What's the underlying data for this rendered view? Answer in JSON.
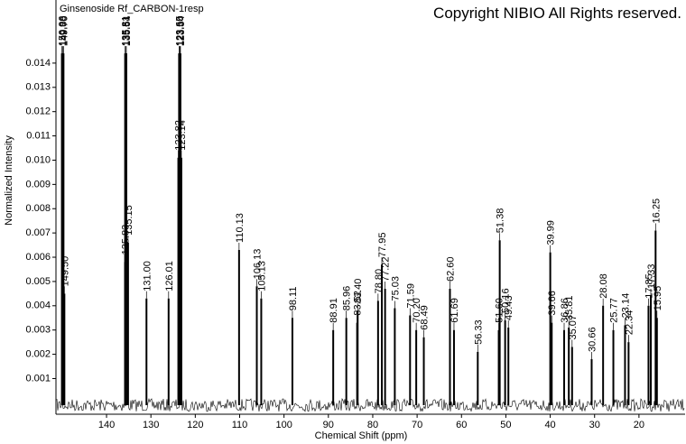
{
  "chart_data": {
    "type": "spectrum",
    "title": "Ginsenoside Rf_CARBON-1resp",
    "copyright": "Copyright NIBIO All Rights reserved.",
    "x_label": "Chemical Shift (ppm)",
    "y_label": "Normalized Intensity",
    "color": "#000000",
    "xlim": [
      151.4,
      9.6
    ],
    "ylim": [
      -0.00047,
      0.0166
    ],
    "xticks": [
      140,
      130,
      120,
      110,
      100,
      90,
      80,
      70,
      60,
      50,
      40,
      30,
      20
    ],
    "yticks": [
      0.001,
      0.002,
      0.003,
      0.004,
      0.005,
      0.006,
      0.007,
      0.008,
      0.009,
      {
        "value": 0.01,
        "label": "0.010"
      },
      0.011,
      0.012,
      0.013,
      0.014
    ],
    "x": [
      150.06,
      149.88,
      149.7,
      149.5,
      135.83,
      135.81,
      135.61,
      135.54,
      135.15,
      131.0,
      126.01,
      123.82,
      123.65,
      123.5,
      123.34,
      123.14,
      110.13,
      106.13,
      105.13,
      98.11,
      88.91,
      85.96,
      83.52,
      83.4,
      78.8,
      77.95,
      77.22,
      75.03,
      71.59,
      70.2,
      68.49,
      62.6,
      61.69,
      56.33,
      51.6,
      51.38,
      50.16,
      49.43,
      39.99,
      39.66,
      36.86,
      35.81,
      35.07,
      30.66,
      28.08,
      25.77,
      23.14,
      22.34,
      17.85,
      17.33,
      16.25,
      15.95
    ],
    "peak_labels": [
      "150.06",
      "149.88",
      "149.70",
      "149.50",
      "135.83",
      "135.81",
      "135.61",
      "135.54",
      "135.15",
      "131.00",
      "126.01",
      "123.82",
      "123.65",
      "123.50",
      "123.34",
      "123.14",
      "110.13",
      "106.13",
      "105.13",
      "98.11",
      "88.91",
      "85.96",
      "83.52",
      "83.40",
      "78.80",
      "77.95",
      "77.22",
      "75.03",
      "71.59",
      "70.20",
      "68.49",
      "62.60",
      "61.69",
      "56.33",
      "51.60",
      "51.38",
      "50.16",
      "49.43",
      "39.99",
      "39.66",
      "36.86",
      "35.81",
      "35.07",
      "30.66",
      "28.08",
      "25.77",
      "23.14",
      "22.34",
      "17.85",
      "17.33",
      "16.25",
      "15.95"
    ],
    "values": [
      0.0144,
      0.0144,
      0.0144,
      0.0045,
      0.0058,
      0.0144,
      0.0144,
      0.0144,
      0.0066,
      0.0043,
      0.0043,
      0.0101,
      0.0144,
      0.0144,
      0.0144,
      0.0101,
      0.0063,
      0.0048,
      0.0043,
      0.0035,
      0.003,
      0.0035,
      0.0033,
      0.0038,
      0.0042,
      0.0057,
      0.0047,
      0.0039,
      0.0036,
      0.003,
      0.0027,
      0.0047,
      0.003,
      0.0021,
      0.003,
      0.0067,
      0.0034,
      0.0031,
      0.0062,
      0.0033,
      0.003,
      0.0031,
      0.0023,
      0.0018,
      0.004,
      0.003,
      0.0032,
      0.0025,
      0.004,
      0.0044,
      0.0071,
      0.0035
    ]
  }
}
